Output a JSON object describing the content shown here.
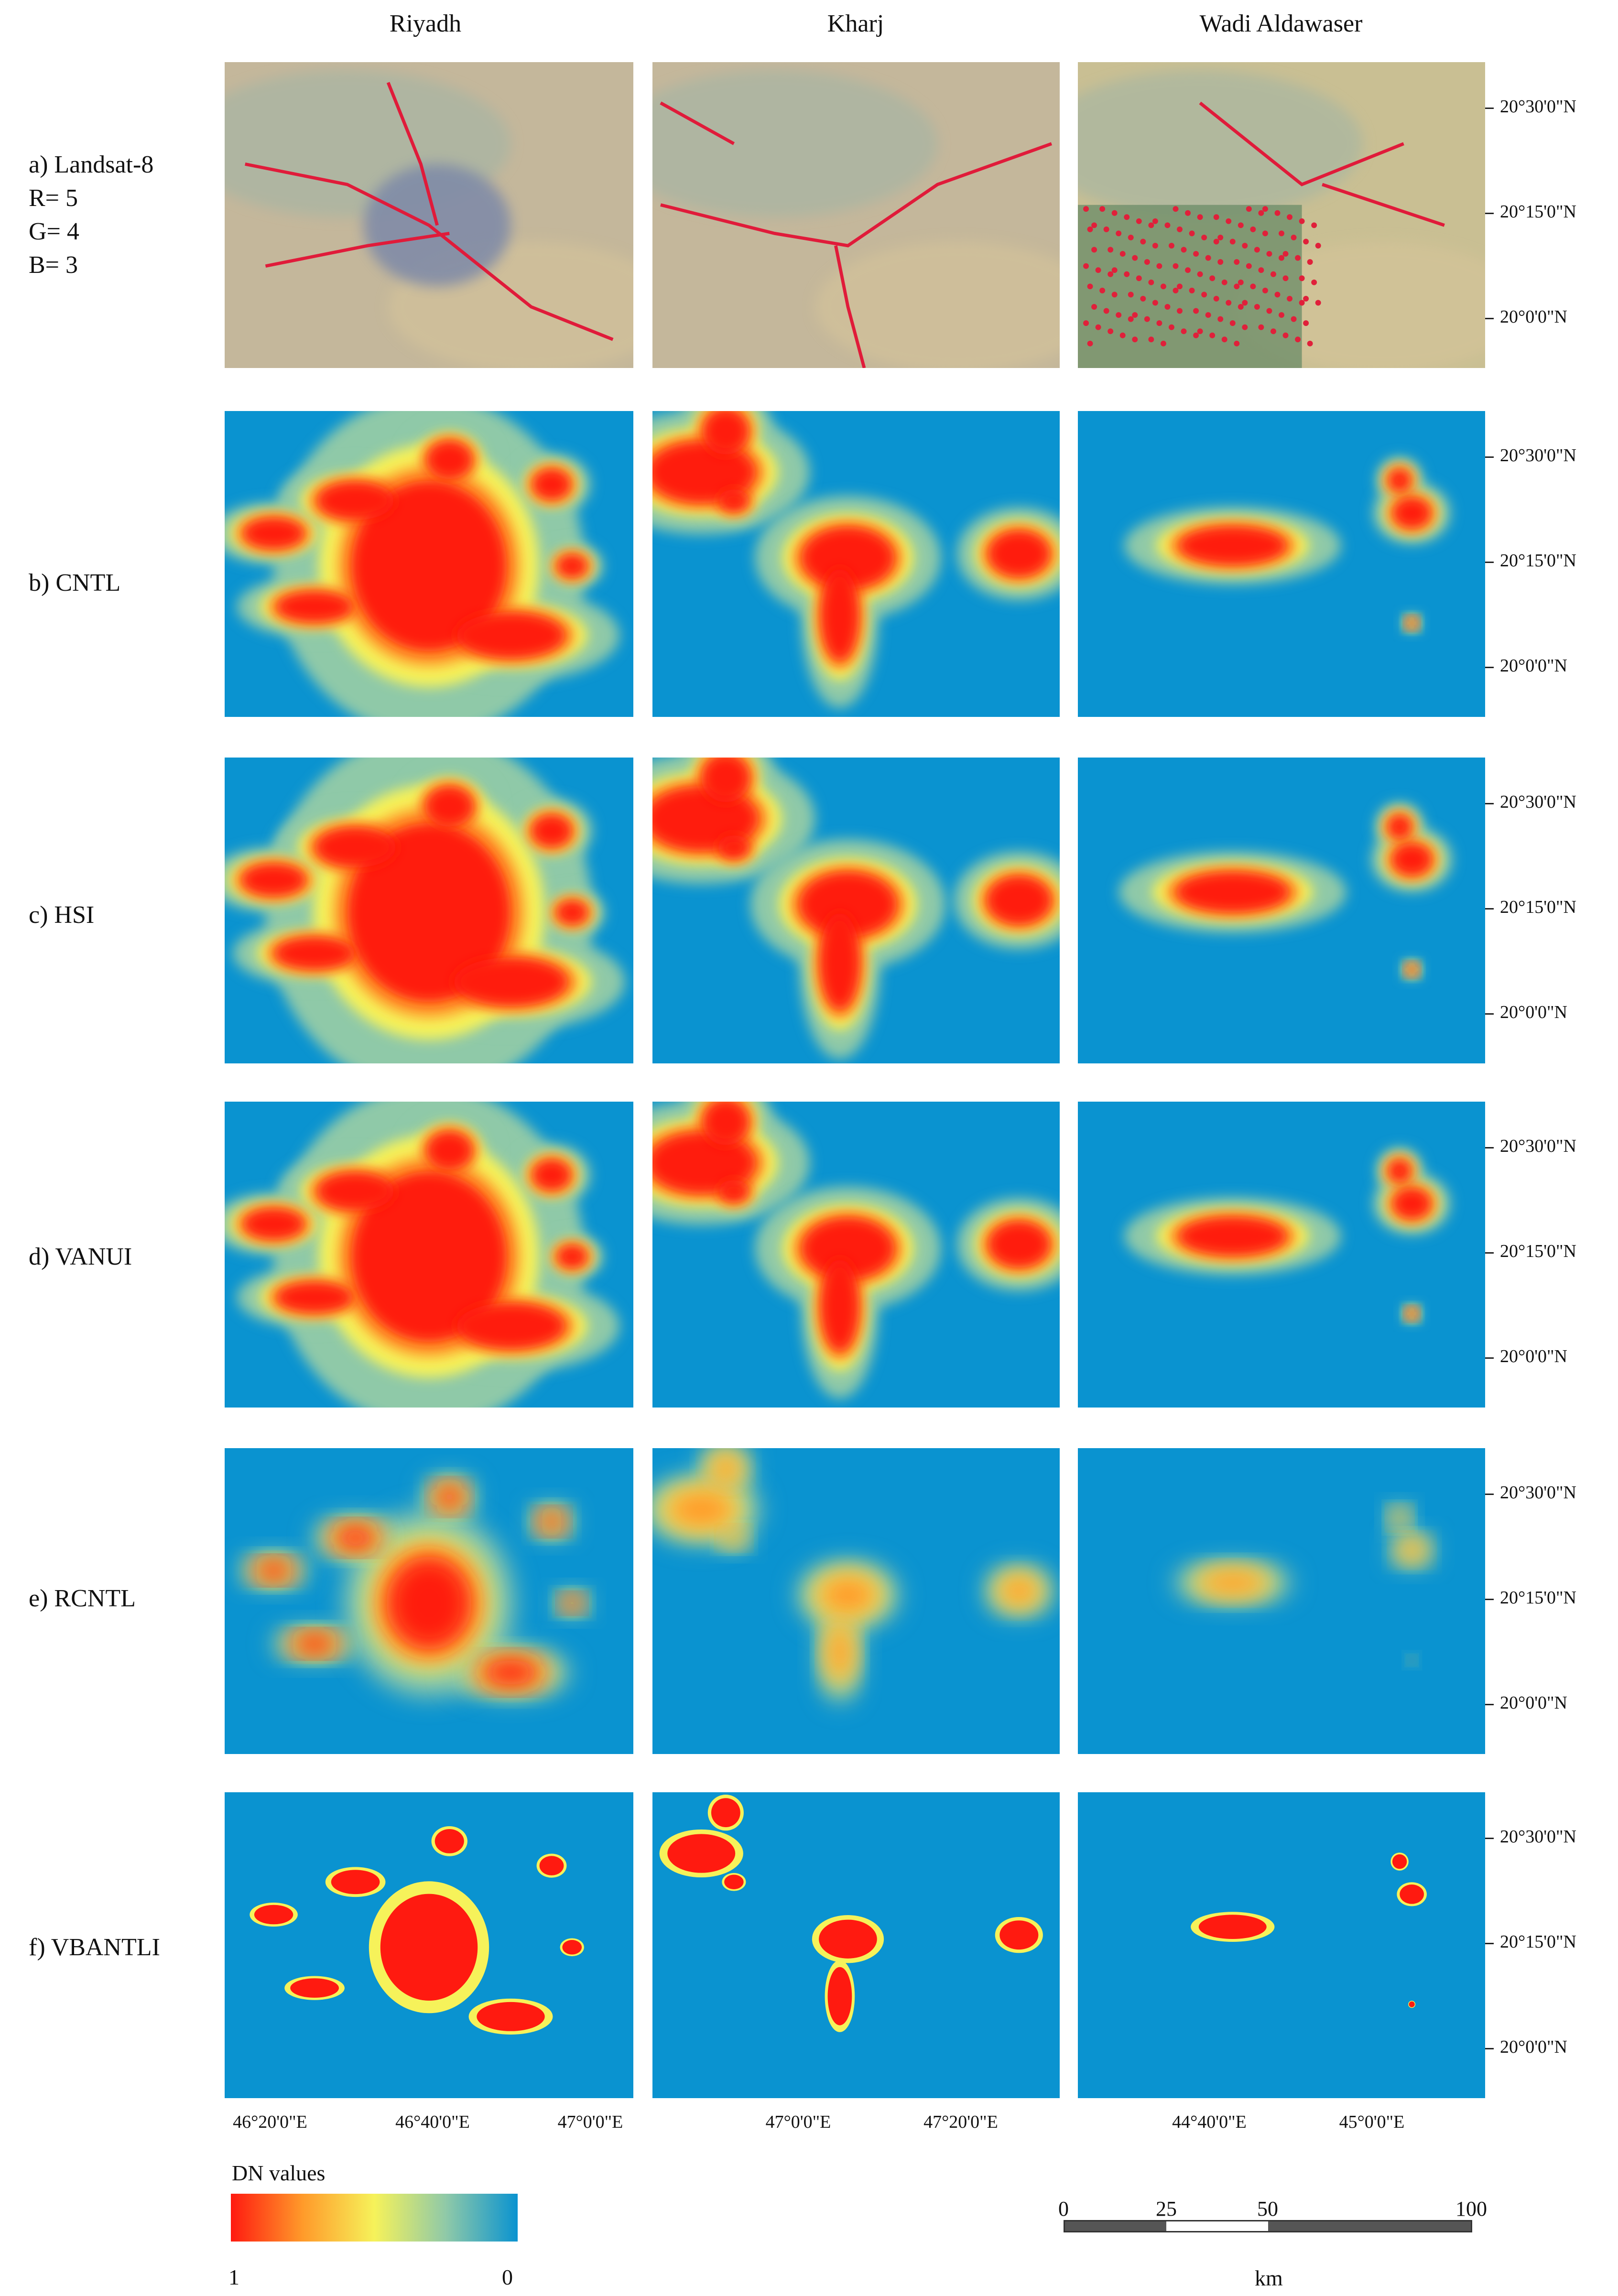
{
  "columns": [
    "Riyadh",
    "Kharj",
    "Wadi Aldawaser"
  ],
  "rows": [
    {
      "label": "a) Landsat-8",
      "extra": [
        "R= 5",
        "G= 4",
        "B= 3"
      ],
      "kind": "landsat"
    },
    {
      "label": "b) CNTL",
      "kind": "cntl"
    },
    {
      "label": "c) HSI",
      "kind": "hsi"
    },
    {
      "label": "d) VANUI",
      "kind": "vanui"
    },
    {
      "label": "e) RCNTL",
      "kind": "rcntl"
    },
    {
      "label": "f) VBANTLI",
      "kind": "vbantli"
    }
  ],
  "lat_labels": [
    "20°30'0\"N",
    "20°15'0\"N",
    "20°0'0\"N"
  ],
  "lon_labels": {
    "riyadh": [
      "46°20'0\"E",
      "46°40'0\"E",
      "47°0'0\"E"
    ],
    "kharj": [
      "47°0'0\"E",
      "47°20'0\"E"
    ],
    "wadi": [
      "44°40'0\"E",
      "45°0'0\"E"
    ]
  },
  "legend": {
    "title": "DN values",
    "max_label": "1",
    "min_label": "0",
    "colors": [
      "#ff1a10",
      "#ff9a2a",
      "#f6f25a",
      "#8fc9a8",
      "#0a93d0"
    ]
  },
  "scale_bar": {
    "ticks": [
      "0",
      "25",
      "50",
      "100"
    ],
    "unit": "km"
  },
  "colors": {
    "background_water": "#0a93d0",
    "hot": "#ff1a10"
  }
}
